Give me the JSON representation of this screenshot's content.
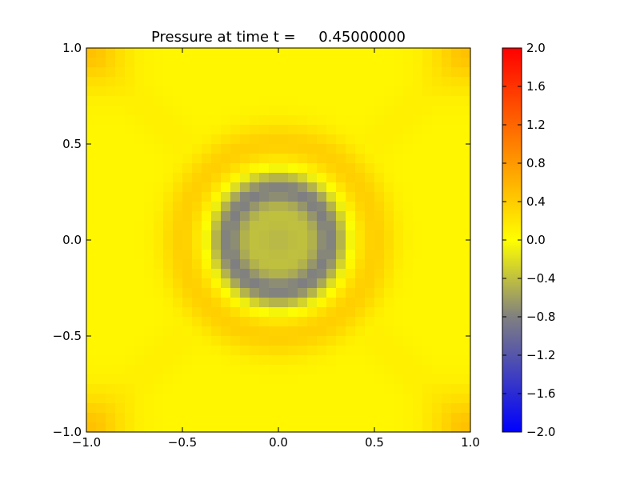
{
  "chart_data": {
    "type": "heatmap",
    "title": "Pressure at time t =     0.45000000",
    "xlabel": "",
    "ylabel": "",
    "xlim": [
      -1.0,
      1.0
    ],
    "ylim": [
      -1.0,
      1.0
    ],
    "grid_size": [
      40,
      40
    ],
    "x_ticks": [
      "−1.0",
      "−0.5",
      "0.0",
      "0.5",
      "1.0"
    ],
    "x_tick_values": [
      -1.0,
      -0.5,
      0.0,
      0.5,
      1.0
    ],
    "y_ticks": [
      "−1.0",
      "−0.5",
      "0.0",
      "0.5",
      "1.0"
    ],
    "y_tick_values": [
      -1.0,
      -0.5,
      0.0,
      0.5,
      1.0
    ],
    "colorbar": {
      "range": [
        -2.0,
        2.0
      ],
      "ticks": [
        "−2.0",
        "−1.6",
        "−1.2",
        "−0.8",
        "−0.4",
        "0.0",
        "0.4",
        "0.8",
        "1.2",
        "1.6",
        "2.0"
      ],
      "tick_values": [
        -2.0,
        -1.6,
        -1.2,
        -0.8,
        -0.4,
        0.0,
        0.4,
        0.8,
        1.2,
        1.6,
        2.0
      ],
      "stops": [
        {
          "value": -2.0,
          "color": "#0000ff"
        },
        {
          "value": -0.8,
          "color": "#808080"
        },
        {
          "value": 0.0,
          "color": "#ffff00"
        },
        {
          "value": 2.0,
          "color": "#ff0000"
        }
      ]
    },
    "features": {
      "center_value": -0.45,
      "trough_radius": 0.27,
      "trough_value": -0.85,
      "ring_radius": 0.5,
      "ring_value": 0.4,
      "background_value": 0.07,
      "corner_value": 0.45
    }
  }
}
